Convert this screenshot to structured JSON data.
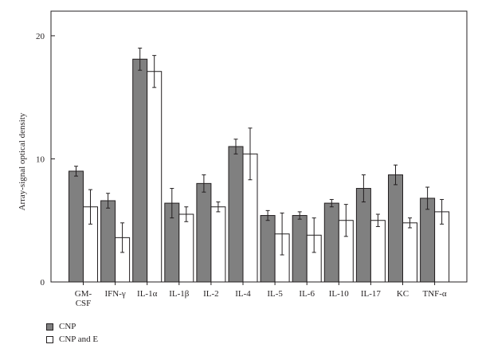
{
  "chart_data": {
    "type": "bar",
    "title": "",
    "xlabel": "",
    "ylabel": "Array-signal optical density",
    "ylim": [
      0,
      22
    ],
    "yticks": [
      0,
      10,
      20
    ],
    "grid": false,
    "legend_position": "bottom-left",
    "categories": [
      [
        "GM-",
        "CSF"
      ],
      [
        "IFN-γ"
      ],
      [
        "IL-1α"
      ],
      [
        "IL-1β"
      ],
      [
        "IL-2"
      ],
      [
        "IL-4"
      ],
      [
        "IL-5"
      ],
      [
        "IL-6"
      ],
      [
        "IL-10"
      ],
      [
        "IL-17"
      ],
      [
        "KC"
      ],
      [
        "TNF-α"
      ]
    ],
    "series": [
      {
        "name": "CNP",
        "color": "#808080",
        "values": [
          9.0,
          6.6,
          18.1,
          6.4,
          8.0,
          11.0,
          5.4,
          5.4,
          6.4,
          7.6,
          8.7,
          6.8
        ],
        "errors": [
          0.4,
          0.6,
          0.9,
          1.2,
          0.7,
          0.6,
          0.4,
          0.3,
          0.3,
          1.1,
          0.8,
          0.9
        ]
      },
      {
        "name": "CNP and E",
        "color": "#ffffff",
        "values": [
          6.1,
          3.6,
          17.1,
          5.5,
          6.1,
          10.4,
          3.9,
          3.8,
          5.0,
          5.0,
          4.8,
          5.7
        ],
        "errors": [
          1.4,
          1.2,
          1.3,
          0.6,
          0.4,
          2.1,
          1.7,
          1.4,
          1.3,
          0.5,
          0.4,
          1.0
        ]
      }
    ]
  }
}
